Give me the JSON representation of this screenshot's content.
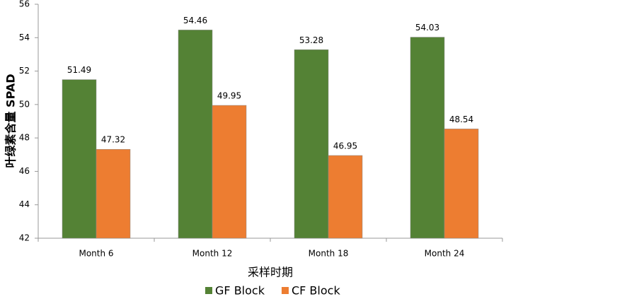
{
  "chart_data": {
    "type": "bar",
    "y_label": "叶绿素含量 SPAD",
    "x_label": "采样时期",
    "categories": [
      "Month 6",
      "Month 12",
      "Month 18",
      "Month 24"
    ],
    "series": [
      {
        "name": "GF Block",
        "color": "#548235",
        "values": [
          51.49,
          54.46,
          53.28,
          54.03
        ]
      },
      {
        "name": "CF Block",
        "color": "#ed7d31",
        "values": [
          47.32,
          49.95,
          46.95,
          48.54
        ]
      }
    ],
    "ylim": [
      42,
      56
    ],
    "yticks": [
      42,
      44,
      46,
      48,
      50,
      52,
      54,
      56
    ],
    "data_labels": true
  }
}
